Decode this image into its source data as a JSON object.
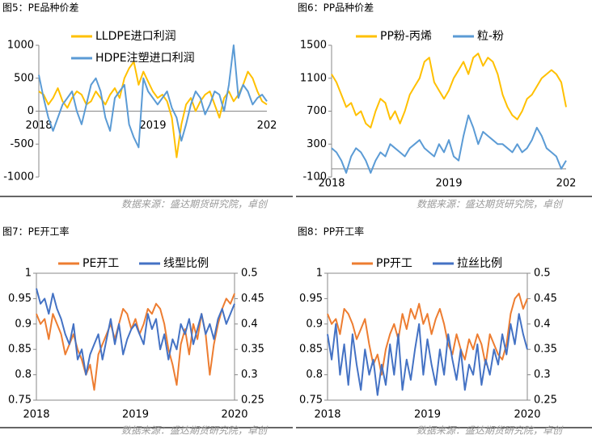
{
  "chart_data": [
    {
      "type": "line",
      "title": "图5：PE品种价差",
      "source": "数据来源：盛达期货研究院，卓创",
      "categories": [
        "2018",
        null,
        null,
        null,
        null,
        null,
        null,
        null,
        null,
        null,
        null,
        null,
        null,
        null,
        null,
        null,
        null,
        null,
        null,
        null,
        null,
        null,
        null,
        null,
        "2019",
        null,
        null,
        null,
        null,
        null,
        null,
        null,
        null,
        null,
        null,
        null,
        null,
        null,
        null,
        null,
        null,
        null,
        null,
        null,
        null,
        null,
        null,
        null,
        "202"
      ],
      "ylim": [
        -1000,
        1000
      ],
      "yticks": [
        -1000,
        -500,
        0,
        500,
        1000
      ],
      "series": [
        {
          "name": "LLDPE进口利润",
          "color": "#FFC000",
          "values": [
            300,
            250,
            100,
            200,
            350,
            150,
            50,
            200,
            300,
            250,
            100,
            150,
            300,
            200,
            100,
            250,
            350,
            200,
            500,
            650,
            750,
            400,
            600,
            450,
            300,
            200,
            250,
            150,
            -100,
            -700,
            -200,
            100,
            200,
            0,
            150,
            250,
            300,
            100,
            -100,
            200,
            300,
            150,
            250,
            400,
            600,
            500,
            300,
            150,
            100
          ]
        },
        {
          "name": "HDPE注塑进口利润",
          "color": "#5B9BD5",
          "values": [
            550,
            200,
            -100,
            -300,
            -100,
            100,
            200,
            300,
            0,
            -200,
            100,
            400,
            500,
            300,
            -100,
            -300,
            200,
            300,
            400,
            -200,
            -400,
            -550,
            500,
            300,
            200,
            100,
            200,
            300,
            50,
            -100,
            -450,
            -200,
            100,
            300,
            200,
            -50,
            100,
            300,
            250,
            0,
            400,
            1000,
            200,
            400,
            300,
            100,
            200,
            250,
            150
          ]
        }
      ]
    },
    {
      "type": "line",
      "title": "图6：PP品种价差",
      "source": "数据来源：盛达期货研究院，卓创",
      "categories": [
        "2018",
        null,
        null,
        null,
        null,
        null,
        null,
        null,
        null,
        null,
        null,
        null,
        null,
        null,
        null,
        null,
        null,
        null,
        null,
        null,
        null,
        null,
        null,
        null,
        "2019",
        null,
        null,
        null,
        null,
        null,
        null,
        null,
        null,
        null,
        null,
        null,
        null,
        null,
        null,
        null,
        null,
        null,
        null,
        null,
        null,
        null,
        null,
        null,
        "202"
      ],
      "ylim": [
        -100,
        1500
      ],
      "yticks": [
        -100,
        300,
        700,
        1100,
        1500
      ],
      "series": [
        {
          "name": "PP粉-丙烯",
          "color": "#FFC000",
          "values": [
            1150,
            1050,
            900,
            750,
            800,
            650,
            700,
            550,
            500,
            700,
            850,
            800,
            600,
            700,
            550,
            700,
            900,
            1000,
            1100,
            1300,
            1350,
            1050,
            950,
            850,
            950,
            1100,
            1200,
            1300,
            1150,
            1350,
            1400,
            1250,
            1350,
            1300,
            1150,
            900,
            750,
            650,
            600,
            700,
            850,
            900,
            1000,
            1100,
            1150,
            1200,
            1150,
            1050,
            750
          ]
        },
        {
          "name": "粒-粉",
          "color": "#5B9BD5",
          "values": [
            250,
            200,
            100,
            -50,
            150,
            250,
            200,
            100,
            -50,
            100,
            200,
            150,
            300,
            250,
            200,
            150,
            250,
            300,
            350,
            250,
            200,
            150,
            300,
            200,
            350,
            150,
            100,
            400,
            650,
            500,
            300,
            450,
            400,
            350,
            300,
            300,
            250,
            200,
            300,
            200,
            250,
            350,
            500,
            400,
            250,
            200,
            150,
            0,
            100
          ]
        }
      ]
    },
    {
      "type": "line",
      "title": "图7：PE开工率",
      "source": "数据来源：盛达期货研究院，卓创",
      "categories": [
        "2018",
        null,
        null,
        null,
        null,
        null,
        null,
        null,
        null,
        null,
        null,
        null,
        null,
        null,
        null,
        null,
        null,
        null,
        null,
        null,
        null,
        null,
        null,
        null,
        "2019",
        null,
        null,
        null,
        null,
        null,
        null,
        null,
        null,
        null,
        null,
        null,
        null,
        null,
        null,
        null,
        null,
        null,
        null,
        null,
        null,
        null,
        null,
        null,
        "2020"
      ],
      "ylim": [
        0.75,
        1
      ],
      "yticks": [
        0.75,
        0.8,
        0.85,
        0.9,
        0.95,
        1
      ],
      "y2lim": [
        0.25,
        0.5
      ],
      "y2ticks": [
        0.25,
        0.3,
        0.35,
        0.4,
        0.45,
        0.5
      ],
      "series": [
        {
          "name": "PE开工",
          "color": "#ED7D31",
          "values": [
            0.92,
            0.9,
            0.91,
            0.87,
            0.92,
            0.9,
            0.88,
            0.84,
            0.86,
            0.88,
            0.85,
            0.83,
            0.8,
            0.82,
            0.77,
            0.84,
            0.86,
            0.88,
            0.9,
            0.87,
            0.9,
            0.93,
            0.92,
            0.89,
            0.91,
            0.88,
            0.9,
            0.93,
            0.92,
            0.94,
            0.93,
            0.9,
            0.85,
            0.82,
            0.78,
            0.86,
            0.89,
            0.84,
            0.9,
            0.87,
            0.92,
            0.88,
            0.8,
            0.86,
            0.9,
            0.93,
            0.95,
            0.94,
            0.96
          ]
        },
        {
          "name": "线型比例",
          "color": "#4472C4",
          "axis": "y2",
          "values": [
            0.47,
            0.44,
            0.45,
            0.42,
            0.46,
            0.43,
            0.41,
            0.38,
            0.36,
            0.4,
            0.33,
            0.35,
            0.3,
            0.34,
            0.36,
            0.38,
            0.33,
            0.37,
            0.41,
            0.36,
            0.4,
            0.34,
            0.37,
            0.39,
            0.4,
            0.38,
            0.36,
            0.42,
            0.39,
            0.41,
            0.35,
            0.38,
            0.33,
            0.37,
            0.35,
            0.4,
            0.38,
            0.41,
            0.36,
            0.39,
            0.42,
            0.38,
            0.4,
            0.37,
            0.41,
            0.43,
            0.4,
            0.42,
            0.44
          ]
        }
      ]
    },
    {
      "type": "line",
      "title": "图8：PP开工率",
      "source": "数据来源：盛达期货研究院，卓创",
      "categories": [
        "2018",
        null,
        null,
        null,
        null,
        null,
        null,
        null,
        null,
        null,
        null,
        null,
        null,
        null,
        null,
        null,
        null,
        null,
        null,
        null,
        null,
        null,
        null,
        null,
        "2019",
        null,
        null,
        null,
        null,
        null,
        null,
        null,
        null,
        null,
        null,
        null,
        null,
        null,
        null,
        null,
        null,
        null,
        null,
        null,
        null,
        null,
        null,
        null,
        "2020"
      ],
      "ylim": [
        0.75,
        1
      ],
      "yticks": [
        0.75,
        0.8,
        0.85,
        0.9,
        0.95,
        1
      ],
      "y2lim": [
        0.25,
        0.5
      ],
      "y2ticks": [
        0.25,
        0.3,
        0.35,
        0.4,
        0.45,
        0.5
      ],
      "series": [
        {
          "name": "PP开工",
          "color": "#ED7D31",
          "values": [
            0.92,
            0.9,
            0.91,
            0.88,
            0.93,
            0.92,
            0.9,
            0.87,
            0.89,
            0.91,
            0.86,
            0.82,
            0.84,
            0.8,
            0.85,
            0.88,
            0.9,
            0.87,
            0.92,
            0.89,
            0.93,
            0.91,
            0.94,
            0.9,
            0.92,
            0.88,
            0.91,
            0.93,
            0.9,
            0.86,
            0.84,
            0.88,
            0.85,
            0.83,
            0.87,
            0.85,
            0.88,
            0.86,
            0.82,
            0.88,
            0.86,
            0.84,
            0.83,
            0.86,
            0.92,
            0.95,
            0.96,
            0.93,
            0.95
          ]
        },
        {
          "name": "拉丝比例",
          "color": "#4472C4",
          "axis": "y2",
          "values": [
            0.38,
            0.33,
            0.4,
            0.3,
            0.36,
            0.28,
            0.38,
            0.32,
            0.27,
            0.35,
            0.3,
            0.33,
            0.26,
            0.32,
            0.28,
            0.36,
            0.3,
            0.38,
            0.27,
            0.33,
            0.29,
            0.35,
            0.4,
            0.3,
            0.37,
            0.32,
            0.28,
            0.35,
            0.3,
            0.38,
            0.33,
            0.29,
            0.35,
            0.27,
            0.32,
            0.3,
            0.36,
            0.28,
            0.33,
            0.3,
            0.35,
            0.32,
            0.38,
            0.34,
            0.4,
            0.36,
            0.42,
            0.38,
            0.35
          ]
        }
      ]
    }
  ]
}
